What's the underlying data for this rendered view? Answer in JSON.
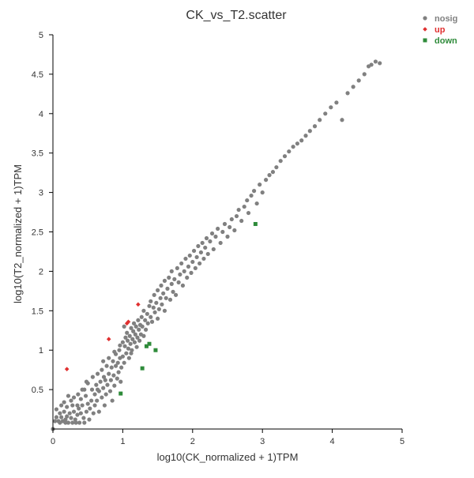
{
  "chart_data": {
    "type": "scatter",
    "title": "CK_vs_T2.scatter",
    "xlabel": "log10(CK_normalized + 1)TPM",
    "ylabel": "log10(T2_normalized + 1)TPM",
    "xlim": [
      0,
      5
    ],
    "ylim": [
      0,
      5
    ],
    "x_ticks": [
      "0",
      "1",
      "2",
      "3",
      "4",
      "5"
    ],
    "y_ticks": [
      "0.5",
      "1",
      "1.5",
      "2",
      "2.5",
      "3",
      "3.5",
      "4",
      "4.5",
      "5"
    ],
    "grid": false,
    "legend_position": "top-right",
    "series": [
      {
        "name": "nosig",
        "color": "#808080",
        "marker": "circle",
        "points": [
          [
            0.0,
            0.0
          ],
          [
            0.03,
            0.1
          ],
          [
            0.05,
            0.15
          ],
          [
            0.05,
            0.25
          ],
          [
            0.08,
            0.1
          ],
          [
            0.1,
            0.2
          ],
          [
            0.12,
            0.15
          ],
          [
            0.12,
            0.3
          ],
          [
            0.14,
            0.1
          ],
          [
            0.16,
            0.22
          ],
          [
            0.18,
            0.08
          ],
          [
            0.18,
            0.12
          ],
          [
            0.2,
            0.16
          ],
          [
            0.2,
            0.28
          ],
          [
            0.22,
            0.08
          ],
          [
            0.24,
            0.2
          ],
          [
            0.26,
            0.14
          ],
          [
            0.28,
            0.08
          ],
          [
            0.28,
            0.3
          ],
          [
            0.3,
            0.22
          ],
          [
            0.3,
            0.4
          ],
          [
            0.32,
            0.12
          ],
          [
            0.33,
            0.08
          ],
          [
            0.35,
            0.18
          ],
          [
            0.35,
            0.3
          ],
          [
            0.37,
            0.26
          ],
          [
            0.38,
            0.08
          ],
          [
            0.4,
            0.2
          ],
          [
            0.4,
            0.38
          ],
          [
            0.42,
            0.3
          ],
          [
            0.44,
            0.14
          ],
          [
            0.45,
            0.5
          ],
          [
            0.45,
            0.08
          ],
          [
            0.47,
            0.42
          ],
          [
            0.48,
            0.22
          ],
          [
            0.5,
            0.58
          ],
          [
            0.5,
            0.32
          ],
          [
            0.52,
            0.12
          ],
          [
            0.53,
            0.26
          ],
          [
            0.55,
            0.36
          ],
          [
            0.56,
            0.5
          ],
          [
            0.57,
            0.66
          ],
          [
            0.58,
            0.2
          ],
          [
            0.6,
            0.44
          ],
          [
            0.6,
            0.3
          ],
          [
            0.62,
            0.56
          ],
          [
            0.63,
            0.36
          ],
          [
            0.64,
            0.7
          ],
          [
            0.66,
            0.48
          ],
          [
            0.66,
            0.22
          ],
          [
            0.68,
            0.6
          ],
          [
            0.7,
            0.4
          ],
          [
            0.7,
            0.75
          ],
          [
            0.72,
            0.52
          ],
          [
            0.73,
            0.66
          ],
          [
            0.74,
            0.3
          ],
          [
            0.75,
            0.62
          ],
          [
            0.76,
            0.44
          ],
          [
            0.77,
            0.8
          ],
          [
            0.78,
            0.56
          ],
          [
            0.8,
            0.7
          ],
          [
            0.8,
            0.9
          ],
          [
            0.82,
            0.48
          ],
          [
            0.83,
            0.62
          ],
          [
            0.84,
            0.78
          ],
          [
            0.85,
            0.36
          ],
          [
            0.86,
            0.86
          ],
          [
            0.87,
            0.68
          ],
          [
            0.88,
            0.55
          ],
          [
            0.9,
            0.8
          ],
          [
            0.9,
            0.95
          ],
          [
            0.92,
            0.64
          ],
          [
            0.93,
            0.84
          ],
          [
            0.94,
            0.72
          ],
          [
            0.95,
            1.0
          ],
          [
            0.96,
            0.9
          ],
          [
            0.97,
            0.6
          ],
          [
            0.98,
            0.78
          ],
          [
            1.0,
            1.1
          ],
          [
            1.0,
            0.92
          ],
          [
            1.02,
            0.84
          ],
          [
            1.03,
            1.05
          ],
          [
            1.04,
            1.16
          ],
          [
            1.05,
            0.96
          ],
          [
            1.06,
            1.22
          ],
          [
            1.07,
            1.12
          ],
          [
            1.08,
            1.02
          ],
          [
            1.09,
            0.9
          ],
          [
            1.1,
            1.18
          ],
          [
            1.11,
            1.08
          ],
          [
            1.12,
            1.28
          ],
          [
            1.13,
            1.0
          ],
          [
            1.14,
            1.14
          ],
          [
            1.15,
            1.24
          ],
          [
            1.16,
            1.34
          ],
          [
            1.17,
            1.1
          ],
          [
            1.18,
            1.2
          ],
          [
            1.19,
            1.3
          ],
          [
            1.2,
            1.04
          ],
          [
            1.21,
            1.16
          ],
          [
            1.22,
            1.38
          ],
          [
            1.23,
            1.26
          ],
          [
            1.24,
            1.12
          ],
          [
            1.25,
            1.32
          ],
          [
            1.26,
            1.2
          ],
          [
            1.27,
            1.42
          ],
          [
            1.28,
            1.3
          ],
          [
            1.3,
            1.5
          ],
          [
            1.3,
            1.18
          ],
          [
            1.32,
            1.38
          ],
          [
            1.33,
            1.26
          ],
          [
            1.35,
            1.46
          ],
          [
            1.36,
            1.34
          ],
          [
            1.38,
            1.56
          ],
          [
            1.4,
            1.42
          ],
          [
            1.4,
            1.62
          ],
          [
            1.42,
            1.36
          ],
          [
            1.44,
            1.54
          ],
          [
            1.45,
            1.7
          ],
          [
            1.46,
            1.48
          ],
          [
            1.48,
            1.6
          ],
          [
            1.5,
            1.4
          ],
          [
            1.5,
            1.76
          ],
          [
            1.52,
            1.52
          ],
          [
            1.54,
            1.66
          ],
          [
            1.55,
            1.82
          ],
          [
            1.56,
            1.58
          ],
          [
            1.58,
            1.72
          ],
          [
            1.6,
            1.88
          ],
          [
            1.6,
            1.5
          ],
          [
            1.62,
            1.66
          ],
          [
            1.64,
            1.78
          ],
          [
            1.66,
            1.92
          ],
          [
            1.68,
            1.64
          ],
          [
            1.7,
            1.84
          ],
          [
            1.7,
            2.0
          ],
          [
            1.72,
            1.74
          ],
          [
            1.74,
            1.9
          ],
          [
            1.76,
            1.7
          ],
          [
            1.78,
            2.04
          ],
          [
            1.8,
            1.86
          ],
          [
            1.82,
            1.96
          ],
          [
            1.84,
            2.1
          ],
          [
            1.86,
            1.82
          ],
          [
            1.88,
            2.0
          ],
          [
            1.9,
            2.16
          ],
          [
            1.92,
            1.92
          ],
          [
            1.94,
            2.06
          ],
          [
            1.96,
            2.2
          ],
          [
            1.98,
            1.98
          ],
          [
            2.0,
            2.12
          ],
          [
            2.02,
            2.26
          ],
          [
            2.04,
            2.04
          ],
          [
            2.06,
            2.18
          ],
          [
            2.08,
            2.32
          ],
          [
            2.1,
            2.1
          ],
          [
            2.12,
            2.24
          ],
          [
            2.14,
            2.36
          ],
          [
            2.16,
            2.16
          ],
          [
            2.18,
            2.3
          ],
          [
            2.2,
            2.42
          ],
          [
            2.22,
            2.22
          ],
          [
            2.25,
            2.38
          ],
          [
            2.28,
            2.48
          ],
          [
            2.3,
            2.28
          ],
          [
            2.33,
            2.44
          ],
          [
            2.36,
            2.54
          ],
          [
            2.4,
            2.36
          ],
          [
            2.43,
            2.5
          ],
          [
            2.46,
            2.6
          ],
          [
            2.5,
            2.44
          ],
          [
            2.53,
            2.56
          ],
          [
            2.56,
            2.66
          ],
          [
            2.6,
            2.52
          ],
          [
            2.63,
            2.7
          ],
          [
            2.66,
            2.78
          ],
          [
            2.7,
            2.64
          ],
          [
            2.74,
            2.82
          ],
          [
            2.78,
            2.9
          ],
          [
            2.8,
            2.74
          ],
          [
            2.84,
            2.96
          ],
          [
            2.88,
            3.02
          ],
          [
            2.92,
            2.86
          ],
          [
            2.96,
            3.1
          ],
          [
            3.0,
            3.0
          ],
          [
            3.05,
            3.16
          ],
          [
            3.1,
            3.22
          ],
          [
            3.15,
            3.26
          ],
          [
            3.2,
            3.32
          ],
          [
            3.26,
            3.4
          ],
          [
            3.32,
            3.46
          ],
          [
            3.38,
            3.52
          ],
          [
            3.44,
            3.58
          ],
          [
            3.5,
            3.62
          ],
          [
            3.56,
            3.66
          ],
          [
            3.62,
            3.72
          ],
          [
            3.68,
            3.78
          ],
          [
            3.75,
            3.84
          ],
          [
            3.82,
            3.92
          ],
          [
            3.9,
            4.0
          ],
          [
            3.98,
            4.08
          ],
          [
            4.06,
            4.14
          ],
          [
            4.14,
            3.92
          ],
          [
            4.22,
            4.26
          ],
          [
            4.3,
            4.34
          ],
          [
            4.38,
            4.42
          ],
          [
            4.46,
            4.5
          ],
          [
            4.52,
            4.6
          ],
          [
            4.56,
            4.62
          ],
          [
            4.62,
            4.66
          ],
          [
            4.68,
            4.64
          ],
          [
            1.02,
            1.3
          ],
          [
            0.96,
            1.06
          ],
          [
            1.12,
            0.96
          ],
          [
            0.88,
            0.98
          ],
          [
            0.72,
            0.86
          ],
          [
            0.64,
            0.5
          ],
          [
            0.48,
            0.6
          ],
          [
            0.42,
            0.5
          ],
          [
            0.36,
            0.44
          ],
          [
            0.26,
            0.36
          ],
          [
            0.22,
            0.42
          ],
          [
            0.16,
            0.34
          ],
          [
            0.1,
            0.08
          ]
        ]
      },
      {
        "name": "up",
        "color": "#e03030",
        "marker": "diamond",
        "points": [
          [
            0.2,
            0.76
          ],
          [
            0.8,
            1.14
          ],
          [
            1.06,
            1.34
          ],
          [
            1.08,
            1.36
          ],
          [
            1.22,
            1.58
          ]
        ]
      },
      {
        "name": "down",
        "color": "#2e8b3a",
        "marker": "square",
        "points": [
          [
            0.97,
            0.45
          ],
          [
            1.28,
            0.77
          ],
          [
            1.34,
            1.05
          ],
          [
            1.38,
            1.08
          ],
          [
            1.47,
            1.0
          ],
          [
            2.9,
            2.6
          ]
        ]
      }
    ]
  }
}
